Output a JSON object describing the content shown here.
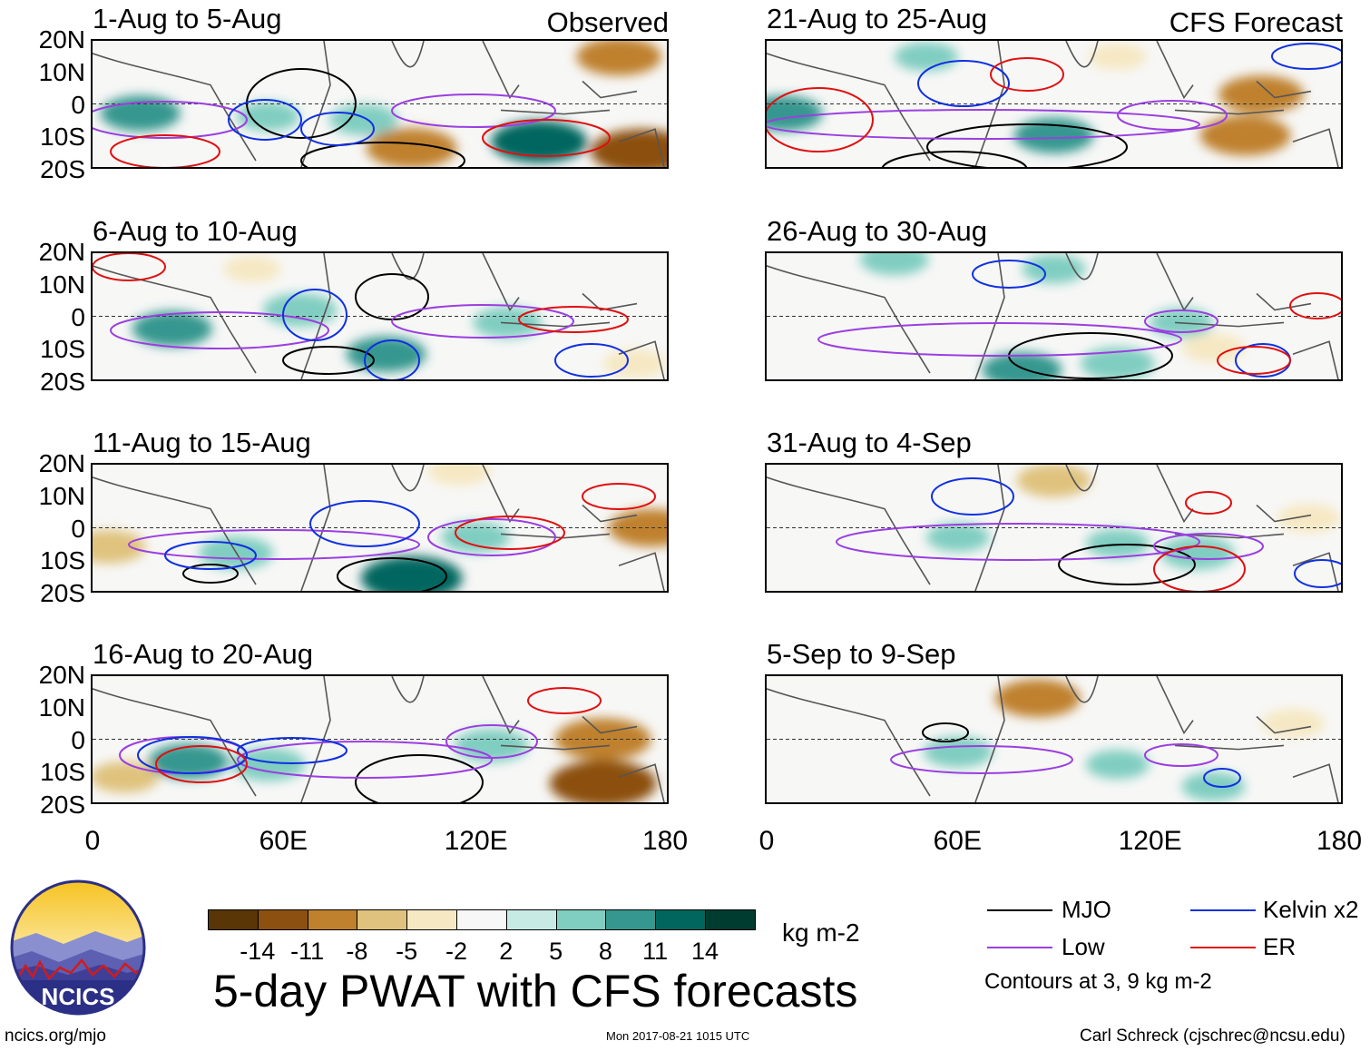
{
  "figure_title": "5-day PWAT with CFS forecasts",
  "columns": {
    "left_tag": "Observed",
    "right_tag": "CFS Forecast"
  },
  "y_ticks": [
    "20N",
    "10N",
    "0",
    "10S",
    "20S"
  ],
  "x_ticks": [
    "0",
    "60E",
    "120E",
    "180"
  ],
  "colorbar": {
    "unit": "kg m-2",
    "labels": [
      "-14",
      "-11",
      "-8",
      "-5",
      "-2",
      "2",
      "5",
      "8",
      "11",
      "14"
    ],
    "colors": [
      "#5a3505",
      "#8c5010",
      "#bf812d",
      "#dfc27d",
      "#f6e8c3",
      "#f7f7f7",
      "#c7eae5",
      "#80cdc1",
      "#35978f",
      "#01665e",
      "#003c30"
    ]
  },
  "legend": {
    "items": [
      {
        "label": "MJO",
        "color": "#000000"
      },
      {
        "label": "Kelvin x2",
        "color": "#1030e0"
      },
      {
        "label": "Low",
        "color": "#9b3fe0"
      },
      {
        "label": "ER",
        "color": "#e01010"
      }
    ],
    "note": "Contours at 3, 9 kg m-2"
  },
  "footer": {
    "url": "ncics.org/mjo",
    "timestamp": "Mon 2017-08-21 1015 UTC",
    "credit": "Carl Schreck (cjschrec@ncsu.edu)",
    "logo_text": "NCICS"
  },
  "chart_data": [
    {
      "type": "heatmap",
      "period": "1-Aug to 5-Aug",
      "source": "Observed",
      "xlim": [
        0,
        180
      ],
      "ylim": [
        -20,
        20
      ],
      "anomalies": [
        {
          "lon": 100,
          "lat": -14,
          "value": -10
        },
        {
          "lon": 165,
          "lat": 15,
          "value": -9
        },
        {
          "lon": 172,
          "lat": -15,
          "value": -12
        },
        {
          "lon": 140,
          "lat": -12,
          "value": 11
        },
        {
          "lon": 15,
          "lat": -3,
          "value": 8
        },
        {
          "lon": 85,
          "lat": -5,
          "value": 6
        },
        {
          "lon": 55,
          "lat": -4,
          "value": 5
        }
      ]
    },
    {
      "type": "heatmap",
      "period": "6-Aug to 10-Aug",
      "source": "Observed",
      "xlim": [
        0,
        180
      ],
      "ylim": [
        -20,
        20
      ],
      "anomalies": [
        {
          "lon": 25,
          "lat": -4,
          "value": 8
        },
        {
          "lon": 65,
          "lat": 2,
          "value": 7
        },
        {
          "lon": 92,
          "lat": -12,
          "value": 8
        },
        {
          "lon": 130,
          "lat": -2,
          "value": 6
        },
        {
          "lon": 50,
          "lat": 15,
          "value": -4
        },
        {
          "lon": 170,
          "lat": -15,
          "value": -5
        }
      ]
    },
    {
      "type": "heatmap",
      "period": "11-Aug to 15-Aug",
      "source": "Observed",
      "xlim": [
        0,
        180
      ],
      "ylim": [
        -20,
        20
      ],
      "anomalies": [
        {
          "lon": 100,
          "lat": -16,
          "value": 12
        },
        {
          "lon": 45,
          "lat": -8,
          "value": 7
        },
        {
          "lon": 5,
          "lat": -6,
          "value": -7
        },
        {
          "lon": 175,
          "lat": 0,
          "value": -9
        },
        {
          "lon": 120,
          "lat": -3,
          "value": 6
        },
        {
          "lon": 115,
          "lat": 18,
          "value": -5
        }
      ]
    },
    {
      "type": "heatmap",
      "period": "16-Aug to 20-Aug",
      "source": "Observed",
      "xlim": [
        0,
        180
      ],
      "ylim": [
        -20,
        20
      ],
      "anomalies": [
        {
          "lon": 160,
          "lat": -14,
          "value": -13
        },
        {
          "lon": 160,
          "lat": 0,
          "value": -11
        },
        {
          "lon": 30,
          "lat": -7,
          "value": 8
        },
        {
          "lon": 55,
          "lat": -8,
          "value": 7
        },
        {
          "lon": 125,
          "lat": -2,
          "value": 7
        },
        {
          "lon": 10,
          "lat": -12,
          "value": -6
        }
      ]
    },
    {
      "type": "heatmap",
      "period": "21-Aug to 25-Aug",
      "source": "CFS Forecast",
      "xlim": [
        0,
        180
      ],
      "ylim": [
        -20,
        20
      ],
      "anomalies": [
        {
          "lon": 5,
          "lat": -3,
          "value": 8
        },
        {
          "lon": 155,
          "lat": 3,
          "value": -9
        },
        {
          "lon": 150,
          "lat": -10,
          "value": -10
        },
        {
          "lon": 90,
          "lat": -10,
          "value": 8
        },
        {
          "lon": 50,
          "lat": 15,
          "value": 5
        },
        {
          "lon": 110,
          "lat": 15,
          "value": -4
        }
      ]
    },
    {
      "type": "heatmap",
      "period": "26-Aug to 30-Aug",
      "source": "CFS Forecast",
      "xlim": [
        0,
        180
      ],
      "ylim": [
        -20,
        20
      ],
      "anomalies": [
        {
          "lon": 80,
          "lat": -17,
          "value": 8
        },
        {
          "lon": 110,
          "lat": -15,
          "value": 7
        },
        {
          "lon": 40,
          "lat": 18,
          "value": 6
        },
        {
          "lon": 130,
          "lat": -2,
          "value": 5
        },
        {
          "lon": 140,
          "lat": -10,
          "value": -5
        },
        {
          "lon": 90,
          "lat": 15,
          "value": 5
        }
      ]
    },
    {
      "type": "heatmap",
      "period": "31-Aug to 4-Sep",
      "source": "CFS Forecast",
      "xlim": [
        0,
        180
      ],
      "ylim": [
        -20,
        20
      ],
      "anomalies": [
        {
          "lon": 90,
          "lat": 15,
          "value": -7
        },
        {
          "lon": 135,
          "lat": -8,
          "value": 7
        },
        {
          "lon": 60,
          "lat": -3,
          "value": 5
        },
        {
          "lon": 170,
          "lat": 3,
          "value": -5
        },
        {
          "lon": 110,
          "lat": -5,
          "value": 5
        }
      ]
    },
    {
      "type": "heatmap",
      "period": "5-Sep to 9-Sep",
      "source": "CFS Forecast",
      "xlim": [
        0,
        180
      ],
      "ylim": [
        -20,
        20
      ],
      "anomalies": [
        {
          "lon": 85,
          "lat": 13,
          "value": -9
        },
        {
          "lon": 60,
          "lat": -4,
          "value": 6
        },
        {
          "lon": 110,
          "lat": -8,
          "value": 5
        },
        {
          "lon": 165,
          "lat": 5,
          "value": -5
        },
        {
          "lon": 140,
          "lat": -15,
          "value": 5
        }
      ]
    }
  ]
}
